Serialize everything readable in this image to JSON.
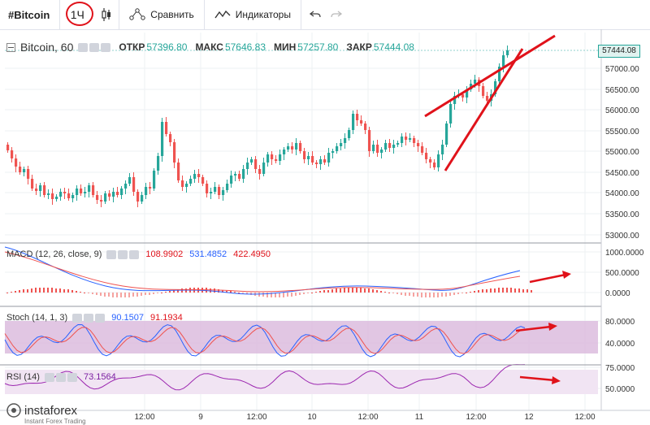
{
  "toolbar": {
    "symbol": "#Bitcoin",
    "interval": "1Ч",
    "compare_label": "Сравнить",
    "indicators_label": "Индикаторы"
  },
  "legend": {
    "title": "Bitcoin, 60",
    "open_label": "ОТКР",
    "open_value": "57396.80",
    "high_label": "МАКС",
    "high_value": "57646.83",
    "low_label": "МИН",
    "low_value": "57257.80",
    "close_label": "ЗАКР",
    "close_value": "57444.08"
  },
  "price_axis": {
    "current": "57444.08",
    "ticks": [
      "57000.00",
      "56500.00",
      "56000.00",
      "55500.00",
      "55000.00",
      "54500.00",
      "54000.00",
      "53500.00",
      "53000.00"
    ]
  },
  "macd": {
    "label": "MACD (12, 26, close, 9)",
    "hist": "108.9902",
    "macd": "531.4852",
    "signal": "422.4950",
    "ticks": [
      "1000.0000",
      "500.0000",
      "0.0000"
    ]
  },
  "stoch": {
    "label": "Stoch (14, 1, 3)",
    "k": "90.1507",
    "d": "91.1934",
    "ticks": [
      "80.0000",
      "40.0000"
    ]
  },
  "rsi": {
    "label": "RSI (14)",
    "value": "73.1564",
    "ticks": [
      "75.0000",
      "50.0000"
    ]
  },
  "time_axis": [
    "12:00",
    "9",
    "12:00",
    "10",
    "12:00",
    "11",
    "12:00",
    "12",
    "12:00"
  ],
  "logo": {
    "name": "instaforex",
    "tagline": "Instant Forex Trading"
  },
  "colors": {
    "up": "#26a69a",
    "down": "#ef5350",
    "annotation": "#e0121a",
    "macd_line": "#2962ff",
    "signal_line": "#ef5350",
    "band": "#e1bee7"
  }
}
